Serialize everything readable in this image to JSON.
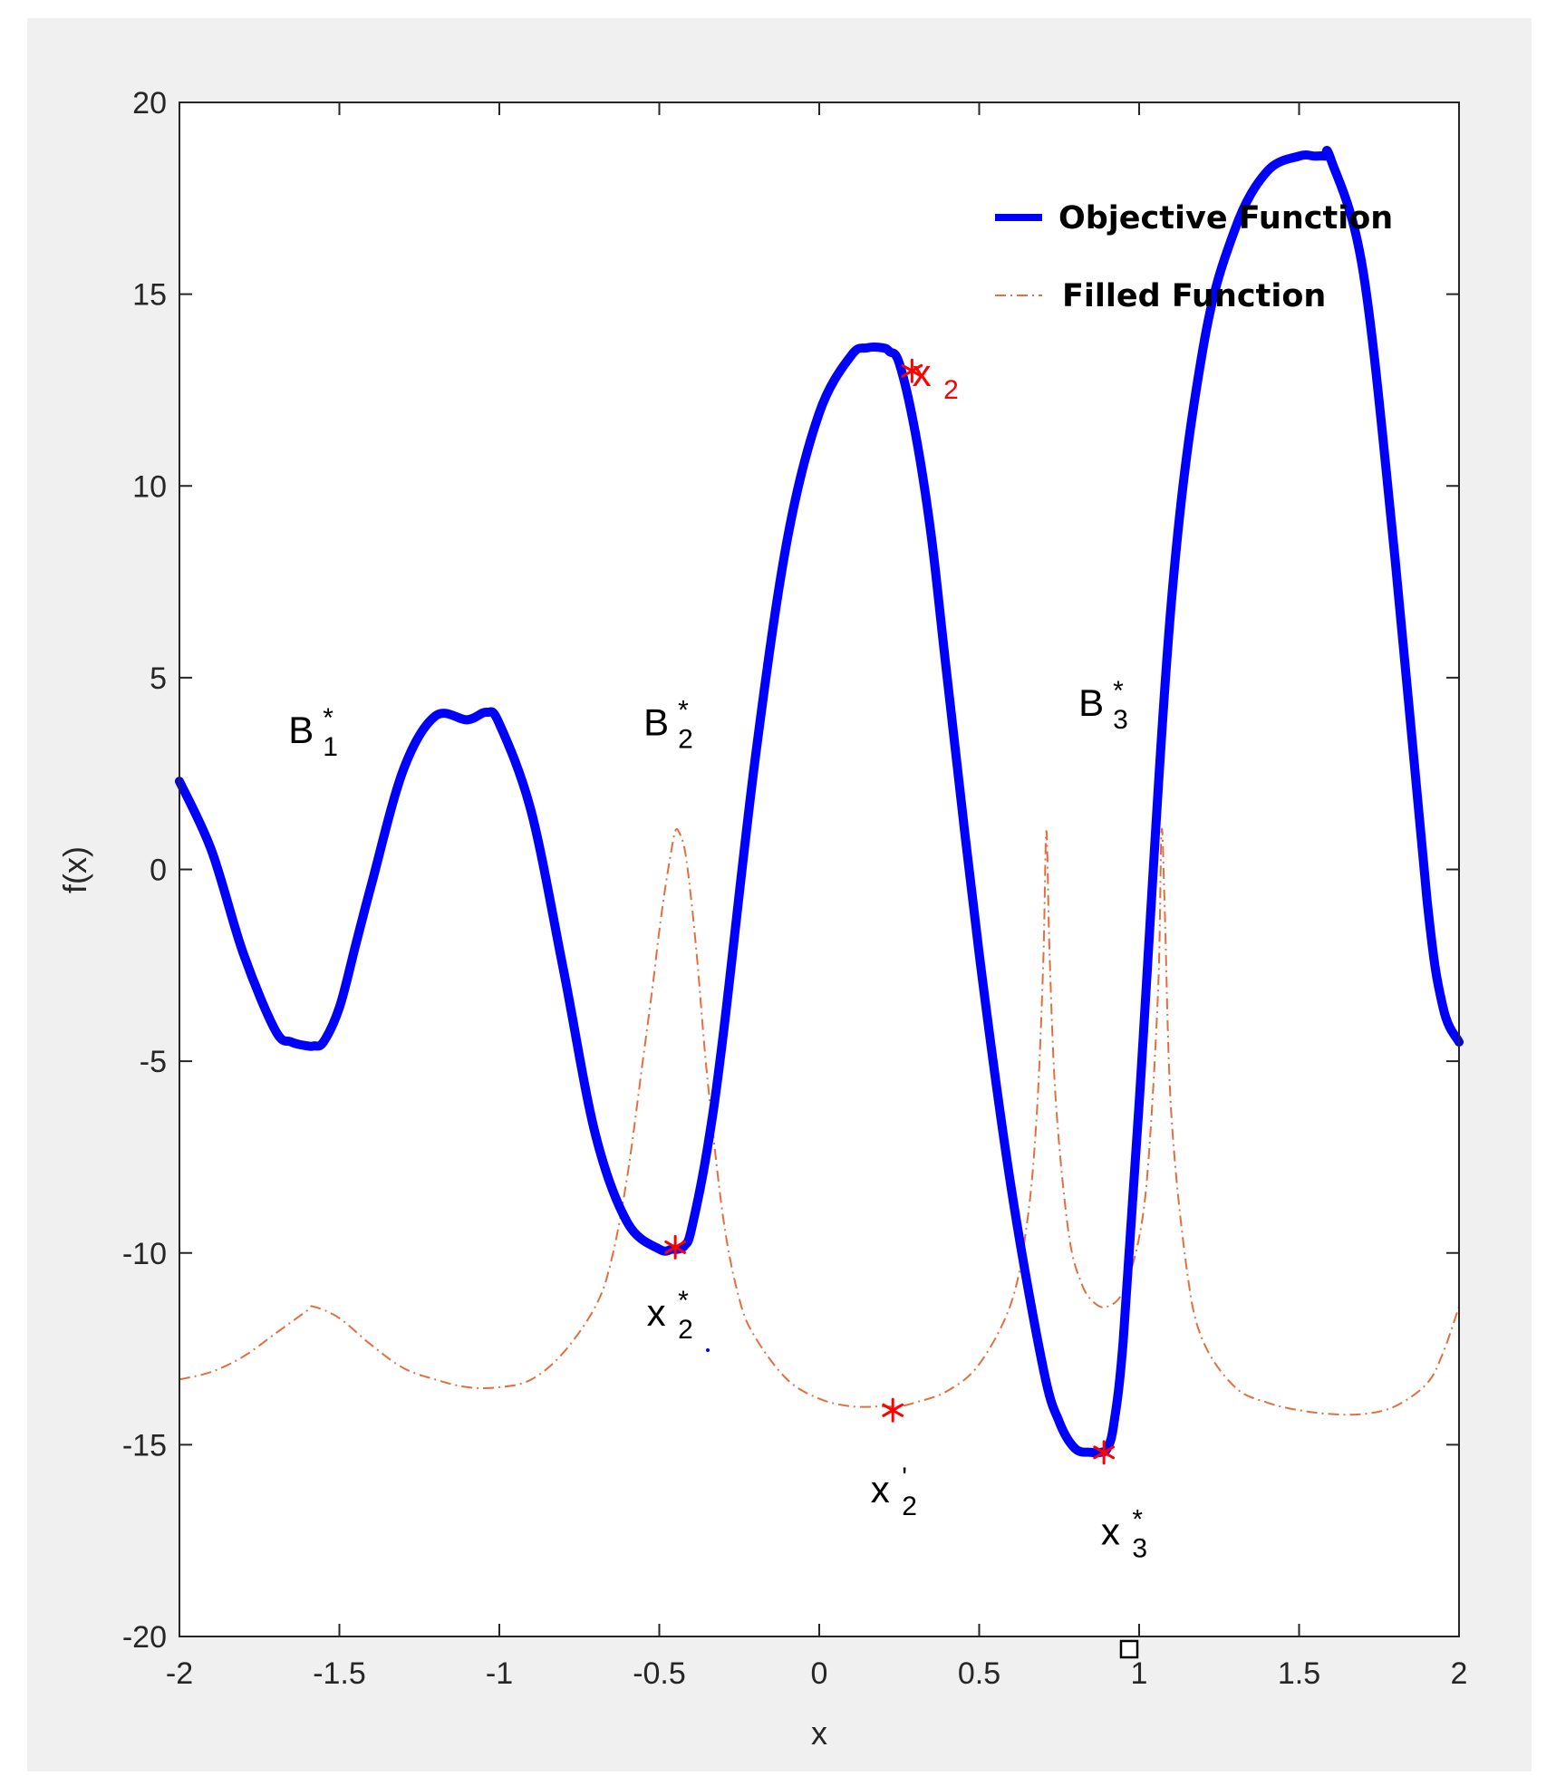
{
  "chart_data": {
    "type": "line",
    "title": "",
    "xlabel": "x",
    "ylabel": "f(x)",
    "xlim": [
      -2,
      2
    ],
    "ylim": [
      -20,
      20
    ],
    "xticks": [
      -2,
      -1.5,
      -1,
      -0.5,
      0,
      0.5,
      1,
      1.5,
      2
    ],
    "xtick_labels": [
      "-2",
      "-1.5",
      "-1",
      "-0.5",
      "0",
      "0.5",
      "1",
      "1.5",
      "2"
    ],
    "yticks": [
      -20,
      -15,
      -10,
      -5,
      0,
      5,
      10,
      15,
      20
    ],
    "ytick_labels": [
      "-20",
      "-15",
      "-10",
      "-5",
      "0",
      "5",
      "10",
      "15",
      "20"
    ],
    "grid": false,
    "legend_position": "top-right",
    "series": [
      {
        "name": "Objective Function",
        "color": "#0000ff",
        "style": "solid-thick",
        "x": [
          -2.0,
          -1.9,
          -1.8,
          -1.7,
          -1.65,
          -1.6,
          -1.58,
          -1.55,
          -1.5,
          -1.45,
          -1.4,
          -1.3,
          -1.2,
          -1.1,
          -1.04,
          -1.0,
          -0.9,
          -0.8,
          -0.7,
          -0.6,
          -0.5,
          -0.46,
          -0.44,
          -0.42,
          -0.4,
          -0.35,
          -0.3,
          -0.2,
          -0.1,
          0.0,
          0.1,
          0.15,
          0.2,
          0.22,
          0.25,
          0.3,
          0.35,
          0.4,
          0.5,
          0.6,
          0.7,
          0.75,
          0.8,
          0.85,
          0.88,
          0.9,
          0.92,
          0.95,
          1.0,
          1.1,
          1.2,
          1.3,
          1.4,
          1.5,
          1.55,
          1.58,
          1.6,
          1.7,
          1.8,
          1.9,
          1.95,
          2.0
        ],
        "y": [
          2.3,
          0.5,
          -2.2,
          -4.2,
          -4.5,
          -4.6,
          -4.6,
          -4.5,
          -3.6,
          -2.0,
          -0.4,
          2.6,
          4.0,
          3.9,
          4.1,
          3.8,
          1.5,
          -2.6,
          -6.9,
          -9.2,
          -9.9,
          -9.9,
          -9.9,
          -9.8,
          -9.4,
          -7.3,
          -4.3,
          2.9,
          8.6,
          11.9,
          13.4,
          13.6,
          13.6,
          13.5,
          13.2,
          11.4,
          8.7,
          5.0,
          -2.2,
          -8.3,
          -13.0,
          -14.4,
          -15.1,
          -15.2,
          -15.2,
          -15.1,
          -14.5,
          -12.3,
          -6.1,
          6.9,
          13.6,
          16.7,
          18.2,
          18.6,
          18.6,
          18.6,
          18.5,
          15.6,
          8.1,
          -0.8,
          -3.6,
          -4.5
        ]
      },
      {
        "name": "Filled Function",
        "color": "#e07040",
        "style": "dash-dot",
        "x": [
          -2.0,
          -1.9,
          -1.8,
          -1.7,
          -1.6,
          -1.58,
          -1.5,
          -1.4,
          -1.3,
          -1.2,
          -1.1,
          -1.0,
          -0.9,
          -0.8,
          -0.7,
          -0.65,
          -0.6,
          -0.55,
          -0.52,
          -0.5,
          -0.48,
          -0.46,
          -0.45,
          -0.44,
          -0.42,
          -0.4,
          -0.38,
          -0.35,
          -0.3,
          -0.25,
          -0.2,
          -0.1,
          0.0,
          0.1,
          0.2,
          0.25,
          0.3,
          0.4,
          0.5,
          0.6,
          0.65,
          0.68,
          0.7,
          0.71,
          0.72,
          0.74,
          0.78,
          0.82,
          0.86,
          0.9,
          0.95,
          1.0,
          1.03,
          1.06,
          1.07,
          1.08,
          1.1,
          1.15,
          1.2,
          1.3,
          1.4,
          1.5,
          1.6,
          1.7,
          1.8,
          1.9,
          1.95,
          2.0
        ],
        "y": [
          -13.3,
          -13.1,
          -12.7,
          -12.1,
          -11.5,
          -11.4,
          -11.7,
          -12.4,
          -13.0,
          -13.3,
          -13.5,
          -13.5,
          -13.3,
          -12.6,
          -11.4,
          -10.2,
          -8.0,
          -4.9,
          -3.0,
          -1.6,
          -0.4,
          0.6,
          1.0,
          1.0,
          0.5,
          -0.8,
          -2.5,
          -5.4,
          -9.1,
          -11.2,
          -12.2,
          -13.3,
          -13.8,
          -14.0,
          -14.0,
          -14.0,
          -13.9,
          -13.6,
          -12.9,
          -11.3,
          -9.2,
          -6.4,
          -2.5,
          1.0,
          -2.2,
          -6.1,
          -9.5,
          -10.8,
          -11.3,
          -11.4,
          -11.0,
          -9.6,
          -7.5,
          -3.0,
          1.0,
          -1.0,
          -6.3,
          -10.5,
          -12.3,
          -13.5,
          -13.9,
          -14.1,
          -14.2,
          -14.2,
          -14.0,
          -13.4,
          -12.6,
          -11.4
        ]
      }
    ],
    "markers": [
      {
        "name": "x2",
        "x": 0.29,
        "y": 13.0,
        "color": "#ff0000"
      },
      {
        "name": "x2*",
        "x": -0.45,
        "y": -9.85,
        "color": "#ff0000"
      },
      {
        "name": "x2'",
        "x": 0.23,
        "y": -14.1,
        "color": "#ff0000"
      },
      {
        "name": "x3*",
        "x": 0.89,
        "y": -15.2,
        "color": "#ff0000"
      }
    ],
    "annotations": [
      {
        "main": "B",
        "sub": "1",
        "sup": "*",
        "x": -1.58,
        "y": 3.3,
        "color": "#000000"
      },
      {
        "main": "B",
        "sub": "2",
        "sup": "*",
        "x": -0.47,
        "y": 3.5,
        "color": "#000000"
      },
      {
        "main": "B",
        "sub": "3",
        "sup": "*",
        "x": 0.89,
        "y": 4.0,
        "color": "#000000"
      },
      {
        "main": "x",
        "sub": "2",
        "sup": "",
        "x": 0.36,
        "y": 12.6,
        "color": "#ff0000"
      },
      {
        "main": "x",
        "sub": "2",
        "sup": "*",
        "x": -0.47,
        "y": -11.9,
        "color": "#000000"
      },
      {
        "main": "x",
        "sub": "2",
        "sup": "'",
        "x": 0.23,
        "y": -16.5,
        "color": "#000000"
      },
      {
        "main": "x",
        "sub": "3",
        "sup": "*",
        "x": 0.95,
        "y": -17.6,
        "color": "#000000"
      }
    ]
  }
}
